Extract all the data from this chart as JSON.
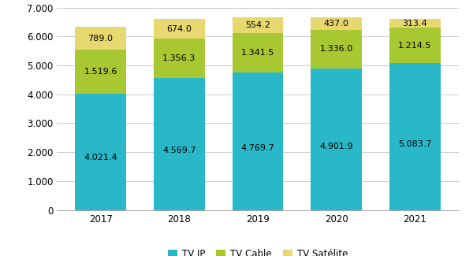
{
  "years": [
    "2017",
    "2018",
    "2019",
    "2020",
    "2021"
  ],
  "tv_ip": [
    4021.4,
    4569.7,
    4769.7,
    4901.9,
    5083.7
  ],
  "tv_cable": [
    1519.6,
    1356.3,
    1341.5,
    1336.0,
    1214.5
  ],
  "tv_satelite": [
    789.0,
    674.0,
    554.2,
    437.0,
    313.4
  ],
  "colors": {
    "tv_ip": "#29B8C8",
    "tv_cable": "#A8C832",
    "tv_satelite": "#E8D870"
  },
  "legend_labels": [
    "TV IP",
    "TV Cable",
    "TV Satélite"
  ],
  "ylim": [
    0,
    7000
  ],
  "yticks": [
    0,
    1000,
    2000,
    3000,
    4000,
    5000,
    6000,
    7000
  ],
  "ytick_labels": [
    "0",
    "1.000",
    "2.000",
    "3.000",
    "4.000",
    "5.000",
    "6.000",
    "7.000"
  ],
  "bar_width": 0.65,
  "background_color": "#FFFFFF",
  "grid_color": "#CCCCCC",
  "label_fontsize": 8.0,
  "legend_fontsize": 8.5,
  "tick_fontsize": 8.5
}
